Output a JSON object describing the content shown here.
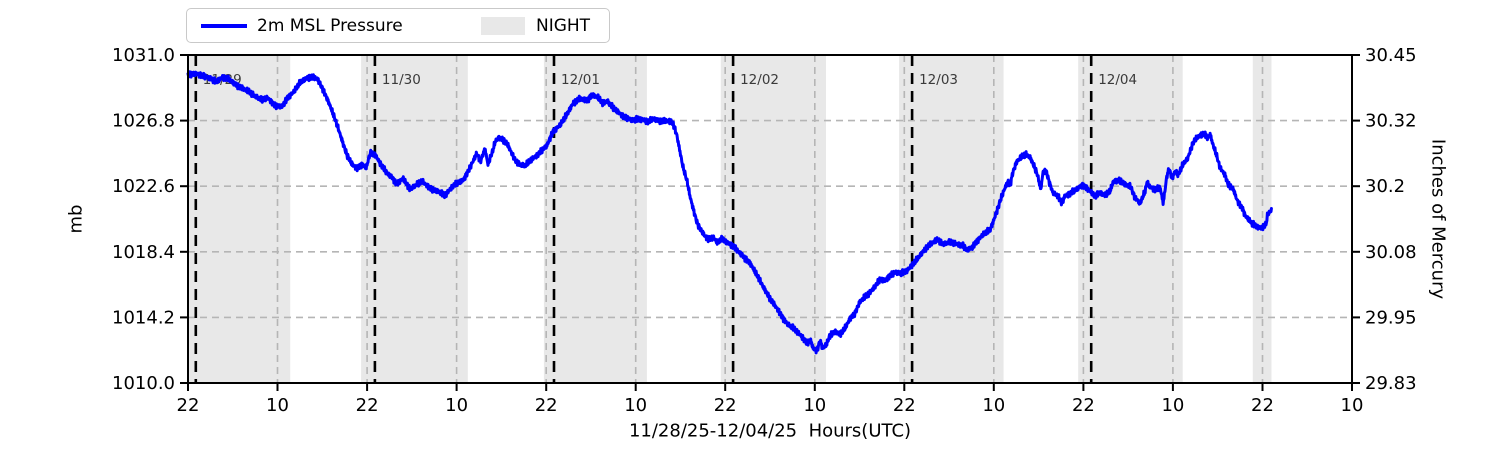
{
  "colors": {
    "line": "#0000ff",
    "night_fill": "#e8e8e8",
    "grid": "#b5b5b5",
    "day_line": "#000000",
    "day_label_text": "#3a3a3a",
    "axis": "#000000",
    "background": "#ffffff"
  },
  "legend": {
    "items": [
      {
        "label": "2m MSL Pressure",
        "swatch": "line"
      },
      {
        "label": "NIGHT",
        "swatch": "patch"
      }
    ]
  },
  "chart_data": {
    "type": "line",
    "title": "",
    "x_axis": {
      "label": "11/28/25-12/04/25  Hours(UTC)",
      "range_hours": [
        0,
        156
      ],
      "start_time": "11/28 22:00 UTC",
      "tick_interval_hours": 12,
      "tick_labels": [
        "22",
        "10",
        "22",
        "10",
        "22",
        "10",
        "22",
        "10",
        "22",
        "10",
        "22",
        "10",
        "22",
        "10"
      ]
    },
    "y_axis_left": {
      "label": "mb",
      "range": [
        1010.0,
        1031.0
      ],
      "ticks": [
        {
          "v": 1031.0,
          "label": "1031.0"
        },
        {
          "v": 1026.8,
          "label": "1026.8"
        },
        {
          "v": 1022.6,
          "label": "1022.6"
        },
        {
          "v": 1018.4,
          "label": "1018.4"
        },
        {
          "v": 1014.2,
          "label": "1014.2"
        },
        {
          "v": 1010.0,
          "label": "1010.0"
        }
      ]
    },
    "y_axis_right": {
      "label": "Inches of Mercury",
      "tick_labels": [
        "30.45",
        "30.32",
        "30.2",
        "30.08",
        "29.95",
        "29.83"
      ]
    },
    "night_spans_hours": [
      [
        0.15,
        13.7
      ],
      [
        23.2,
        37.5
      ],
      [
        47.7,
        61.5
      ],
      [
        71.4,
        85.5
      ],
      [
        95.3,
        109.3
      ],
      [
        119.3,
        133.3
      ],
      [
        142.7,
        145.2
      ]
    ],
    "day_lines": [
      {
        "t": 1.05,
        "label": "11/29"
      },
      {
        "t": 25.05,
        "label": "11/30"
      },
      {
        "t": 49.05,
        "label": "12/01"
      },
      {
        "t": 73.05,
        "label": "12/02"
      },
      {
        "t": 97.05,
        "label": "12/03"
      },
      {
        "t": 121.05,
        "label": "12/04"
      }
    ],
    "series": [
      {
        "name": "2m MSL Pressure",
        "unit": "mb",
        "points": [
          [
            0,
            1029.7
          ],
          [
            1.1,
            1029.8
          ],
          [
            2,
            1029.7
          ],
          [
            2.9,
            1029.5
          ],
          [
            3.75,
            1029.3
          ],
          [
            4.6,
            1029.55
          ],
          [
            5.4,
            1029.45
          ],
          [
            6.3,
            1029.15
          ],
          [
            7.2,
            1028.9
          ],
          [
            8.2,
            1028.65
          ],
          [
            9.1,
            1028.35
          ],
          [
            9.9,
            1028.1
          ],
          [
            10.7,
            1028.25
          ],
          [
            11.7,
            1027.75
          ],
          [
            12.6,
            1027.7
          ],
          [
            13.4,
            1028.3
          ],
          [
            14.1,
            1028.6
          ],
          [
            15,
            1029.2
          ],
          [
            15.8,
            1029.5
          ],
          [
            16.5,
            1029.6
          ],
          [
            17.3,
            1029.5
          ],
          [
            18.1,
            1028.8
          ],
          [
            19,
            1027.8
          ],
          [
            20,
            1026.5
          ],
          [
            20.6,
            1025.6
          ],
          [
            21.3,
            1024.6
          ],
          [
            22,
            1024
          ],
          [
            22.65,
            1023.75
          ],
          [
            23.3,
            1024
          ],
          [
            23.9,
            1023.8
          ],
          [
            24.4,
            1024.7
          ],
          [
            25.1,
            1024.6
          ],
          [
            25.7,
            1024.1
          ],
          [
            26.7,
            1023.4
          ],
          [
            27.3,
            1023.2
          ],
          [
            28,
            1022.75
          ],
          [
            28.8,
            1023.1
          ],
          [
            29.75,
            1022.4
          ],
          [
            30.6,
            1022.7
          ],
          [
            31.4,
            1022.9
          ],
          [
            32.4,
            1022.5
          ],
          [
            33.8,
            1022.2
          ],
          [
            34.4,
            1022
          ],
          [
            35.5,
            1022.6
          ],
          [
            36.9,
            1023
          ],
          [
            37.8,
            1023.8
          ],
          [
            38.7,
            1024.7
          ],
          [
            39.2,
            1024.2
          ],
          [
            39.8,
            1025
          ],
          [
            40.2,
            1024
          ],
          [
            40.8,
            1024.8
          ],
          [
            41.2,
            1025.5
          ],
          [
            41.7,
            1025.7
          ],
          [
            42.2,
            1025.6
          ],
          [
            42.8,
            1025.3
          ],
          [
            43.8,
            1024.3
          ],
          [
            44.5,
            1024
          ],
          [
            45.2,
            1023.9
          ],
          [
            45.8,
            1024.2
          ],
          [
            46.8,
            1024.6
          ],
          [
            48.1,
            1025.2
          ],
          [
            48.9,
            1026.1
          ],
          [
            49.85,
            1026.5
          ],
          [
            50.8,
            1027.2
          ],
          [
            51.6,
            1027.9
          ],
          [
            52.5,
            1028.2
          ],
          [
            53.5,
            1028.1
          ],
          [
            54.1,
            1028.45
          ],
          [
            54.9,
            1028.3
          ],
          [
            55.6,
            1027.9
          ],
          [
            56.2,
            1028.05
          ],
          [
            57,
            1027.6
          ],
          [
            57.5,
            1027.4
          ],
          [
            58.3,
            1027.1
          ],
          [
            59,
            1026.95
          ],
          [
            59.6,
            1026.8
          ],
          [
            60.3,
            1026.9
          ],
          [
            61,
            1026.85
          ],
          [
            61.7,
            1026.7
          ],
          [
            62.3,
            1026.9
          ],
          [
            63.3,
            1026.8
          ],
          [
            64.2,
            1026.8
          ],
          [
            65,
            1026.65
          ],
          [
            65.5,
            1025.9
          ],
          [
            65.9,
            1024.9
          ],
          [
            66.3,
            1023.9
          ],
          [
            66.9,
            1022.9
          ],
          [
            67.3,
            1021.9
          ],
          [
            67.8,
            1021
          ],
          [
            68.2,
            1020.3
          ],
          [
            68.6,
            1019.9
          ],
          [
            69.3,
            1019.4
          ],
          [
            69.7,
            1019.2
          ],
          [
            70.4,
            1019.35
          ],
          [
            70.9,
            1019
          ],
          [
            71.6,
            1019.2
          ],
          [
            72.2,
            1019
          ],
          [
            73,
            1018.8
          ],
          [
            73.6,
            1018.5
          ],
          [
            74,
            1018.3
          ],
          [
            74.65,
            1018
          ],
          [
            75.3,
            1017.7
          ],
          [
            76.25,
            1016.9
          ],
          [
            77.05,
            1016.2
          ],
          [
            78,
            1015.4
          ],
          [
            78.9,
            1014.8
          ],
          [
            79.7,
            1014.2
          ],
          [
            80.3,
            1013.8
          ],
          [
            81.1,
            1013.5
          ],
          [
            81.6,
            1013.3
          ],
          [
            82.4,
            1012.9
          ],
          [
            83,
            1012.5
          ],
          [
            83.4,
            1012.8
          ],
          [
            83.8,
            1012.2
          ],
          [
            84.3,
            1012.1
          ],
          [
            84.7,
            1012.7
          ],
          [
            85.1,
            1012.2
          ],
          [
            85.6,
            1012.5
          ],
          [
            86,
            1013
          ],
          [
            86.7,
            1013.3
          ],
          [
            87.4,
            1013.1
          ],
          [
            88.05,
            1013.5
          ],
          [
            88.7,
            1014.1
          ],
          [
            89.4,
            1014.5
          ],
          [
            90.05,
            1015.2
          ],
          [
            90.7,
            1015.5
          ],
          [
            91.4,
            1015.8
          ],
          [
            92.1,
            1016.2
          ],
          [
            92.75,
            1016.6
          ],
          [
            93.4,
            1016.55
          ],
          [
            94.1,
            1016.9
          ],
          [
            94.8,
            1017.1
          ],
          [
            95.4,
            1017
          ],
          [
            96.35,
            1017.2
          ],
          [
            97,
            1017.5
          ],
          [
            97.7,
            1017.9
          ],
          [
            98.4,
            1018.35
          ],
          [
            99,
            1018.7
          ],
          [
            99.8,
            1019
          ],
          [
            100.5,
            1019.2
          ],
          [
            101.2,
            1018.9
          ],
          [
            102.1,
            1019
          ],
          [
            103.05,
            1018.9
          ],
          [
            103.9,
            1018.8
          ],
          [
            104.4,
            1018.5
          ],
          [
            105.1,
            1018.7
          ],
          [
            105.75,
            1019.1
          ],
          [
            106.55,
            1019.5
          ],
          [
            107.5,
            1019.8
          ],
          [
            107.9,
            1020.3
          ],
          [
            108.4,
            1021
          ],
          [
            108.95,
            1021.8
          ],
          [
            109.5,
            1022.5
          ],
          [
            109.9,
            1022.9
          ],
          [
            110.15,
            1022.6
          ],
          [
            110.55,
            1023.5
          ],
          [
            111.1,
            1024.2
          ],
          [
            111.8,
            1024.5
          ],
          [
            112.3,
            1024.65
          ],
          [
            112.85,
            1024.45
          ],
          [
            113.2,
            1024.1
          ],
          [
            113.8,
            1023.4
          ],
          [
            114.3,
            1022.4
          ],
          [
            114.6,
            1023.5
          ],
          [
            115,
            1023.6
          ],
          [
            115.4,
            1022.9
          ],
          [
            115.9,
            1022.2
          ],
          [
            116.6,
            1021.95
          ],
          [
            117.1,
            1021.5
          ],
          [
            117.5,
            1021.95
          ],
          [
            118.2,
            1022.1
          ],
          [
            119.1,
            1022.4
          ],
          [
            119.9,
            1022.7
          ],
          [
            120.5,
            1022.45
          ],
          [
            120.9,
            1022.3
          ],
          [
            121.5,
            1021.95
          ],
          [
            122.2,
            1022.2
          ],
          [
            122.9,
            1022
          ],
          [
            123.6,
            1022.3
          ],
          [
            124,
            1022.9
          ],
          [
            124.9,
            1023
          ],
          [
            125.6,
            1022.7
          ],
          [
            126.3,
            1022.6
          ],
          [
            126.9,
            1021.9
          ],
          [
            127.6,
            1021.5
          ],
          [
            128.3,
            1022.3
          ],
          [
            128.5,
            1022.9
          ],
          [
            128.9,
            1022.55
          ],
          [
            129.6,
            1022.4
          ],
          [
            130.3,
            1022.5
          ],
          [
            130.7,
            1021.5
          ],
          [
            131.2,
            1023.3
          ],
          [
            131.5,
            1023.7
          ],
          [
            131.9,
            1023.1
          ],
          [
            132.3,
            1023.6
          ],
          [
            132.7,
            1023.3
          ],
          [
            133.35,
            1024
          ],
          [
            134,
            1024.4
          ],
          [
            134.7,
            1025.4
          ],
          [
            135.4,
            1025.8
          ],
          [
            135.9,
            1025.9
          ],
          [
            136.3,
            1026
          ],
          [
            136.6,
            1025.7
          ],
          [
            137,
            1025.9
          ],
          [
            137.4,
            1025.2
          ],
          [
            137.9,
            1024.5
          ],
          [
            138.3,
            1023.8
          ],
          [
            139,
            1023.3
          ],
          [
            139.4,
            1022.7
          ],
          [
            140.1,
            1022.4
          ],
          [
            140.6,
            1021.7
          ],
          [
            141.3,
            1021.2
          ],
          [
            141.7,
            1020.7
          ],
          [
            142.1,
            1020.5
          ],
          [
            142.6,
            1020.2
          ],
          [
            143.3,
            1020
          ],
          [
            143.9,
            1019.9
          ],
          [
            144.5,
            1020.2
          ],
          [
            144.7,
            1020.8
          ],
          [
            145.25,
            1021.1
          ]
        ]
      }
    ]
  }
}
